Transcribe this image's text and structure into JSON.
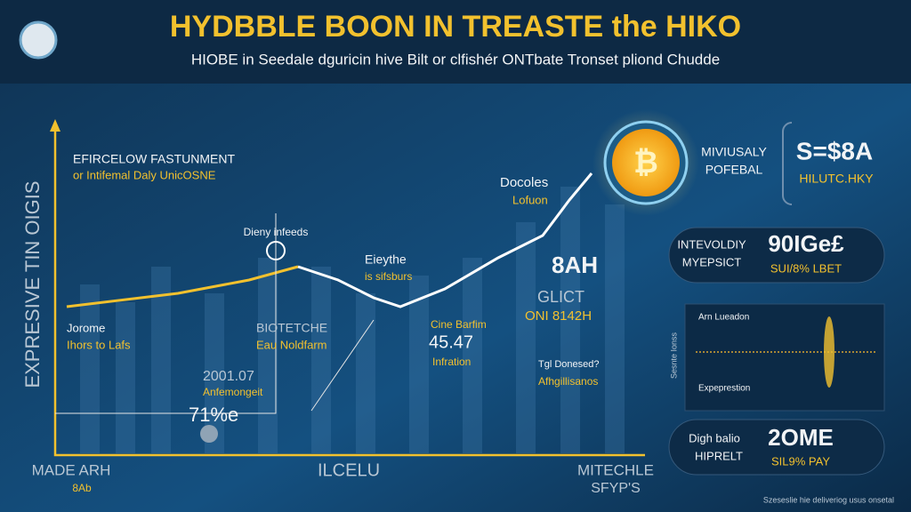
{
  "header": {
    "title": "HYDBBLE BOON IN TREASTE the HIKO",
    "subtitle": "HIOBE in Seedale dguricin hive Bilt or clfishér ONTbate Tronset pliond Chudde"
  },
  "chart": {
    "axis_label": "EXPRESIVE TIN OIGIS",
    "annotations": [
      {
        "title": "EFIRCELOW FASTUNMENT",
        "note": "or Intifemal Daly UnicOSNE"
      },
      {
        "title": "Dieny infeeds"
      },
      {
        "title": "Eieythe",
        "note": "is sifsburs"
      },
      {
        "title": "Docoles",
        "note": "Lofuon"
      },
      {
        "title": "Jorome",
        "note": "Ihors to Lafs"
      },
      {
        "title": "BIOTETCHE",
        "note": "Eau Noldfarm"
      },
      {
        "title": "2001.07",
        "note": "Anfemongeit"
      },
      {
        "title": "71%e"
      },
      {
        "title": "Cine Barfim",
        "value": "45.47",
        "note": "Infration"
      },
      {
        "title": "8AH"
      },
      {
        "title": "GLICT",
        "note": "ONI 8142H"
      },
      {
        "title": "Tgl Donesed?",
        "note": "Afhgillisanos"
      }
    ],
    "x_labels": [
      {
        "title": "MADE ARH",
        "note": "8Ab"
      },
      {
        "title": "ILCELU"
      },
      {
        "title": "MITECHLE",
        "note": "SFYP'S"
      }
    ]
  },
  "panels": [
    {
      "label": "MIVIUSALY",
      "sub": "POFEBAL",
      "value": "S=$8A",
      "value_note": "HILUTC.HKY"
    },
    {
      "label": "INTEVOLDIY",
      "sub": "MYEPSICT",
      "value": "90IGe£",
      "value_note": "SUI/8% LBET"
    },
    {
      "top": "Arn Lueadon",
      "bottom": "Expeprestion",
      "side": "Sesnte Ionss"
    },
    {
      "label": "Digh balio",
      "sub": "HIPRELT",
      "value": "2OME",
      "value_note": "SIL9% PAY"
    }
  ],
  "footer": "Szeseslie hie deliveriog usus onsetal"
}
